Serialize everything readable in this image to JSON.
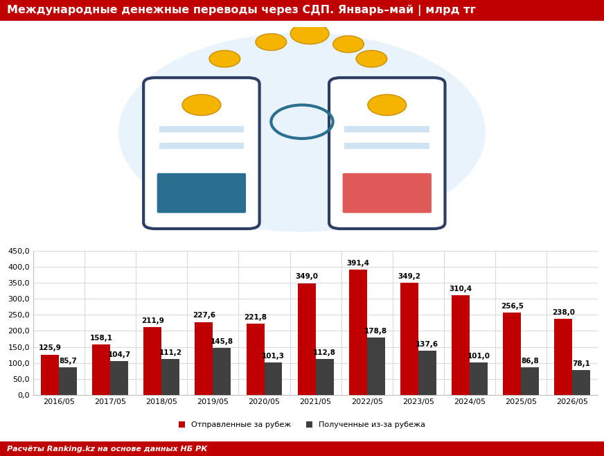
{
  "chart_data": {
    "type": "bar",
    "title": "Международные денежные переводы через СДП. Январь–май | млрд тг",
    "source": "Расчёты Ranking.kz на основе данных НБ РК",
    "categories": [
      "2016/05",
      "2017/05",
      "2018/05",
      "2019/05",
      "2020/05",
      "2021/05",
      "2022/05",
      "2023/05",
      "2024/05",
      "2025/05",
      "2026/05"
    ],
    "series": [
      {
        "name": "Отправленные за рубеж",
        "color": "#c00000",
        "values": [
          125.9,
          158.1,
          211.9,
          227.6,
          221.8,
          349.0,
          391.4,
          349.2,
          310.4,
          256.5,
          238.0
        ],
        "value_labels": [
          "125,9",
          "158,1",
          "211,9",
          "227,6",
          "221,8",
          "349,0",
          "391,4",
          "349,2",
          "310,4",
          "256,5",
          "238,0"
        ]
      },
      {
        "name": "Полученные из-за рубежа",
        "color": "#404040",
        "values": [
          85.7,
          104.7,
          111.2,
          145.8,
          101.3,
          112.8,
          178.8,
          137.6,
          101.0,
          86.8,
          78.1
        ],
        "value_labels": [
          "85,7",
          "104,7",
          "111,2",
          "145,8",
          "101,3",
          "112,8",
          "178,8",
          "137,6",
          "101,0",
          "86,8",
          "78,1"
        ]
      }
    ],
    "ylim": [
      0,
      450
    ],
    "yticks": [
      {
        "value": 0,
        "label": "0,0"
      },
      {
        "value": 50,
        "label": "50,0"
      },
      {
        "value": 100,
        "label": "100,0"
      },
      {
        "value": 150,
        "label": "150,0"
      },
      {
        "value": 200,
        "label": "200,0"
      },
      {
        "value": 250,
        "label": "250,0"
      },
      {
        "value": 300,
        "label": "300,0"
      },
      {
        "value": 350,
        "label": "350,0"
      },
      {
        "value": 400,
        "label": "400,0"
      },
      {
        "value": 450,
        "label": "450,0"
      }
    ],
    "grid": true,
    "data_labels": true,
    "legend": "lower center"
  }
}
